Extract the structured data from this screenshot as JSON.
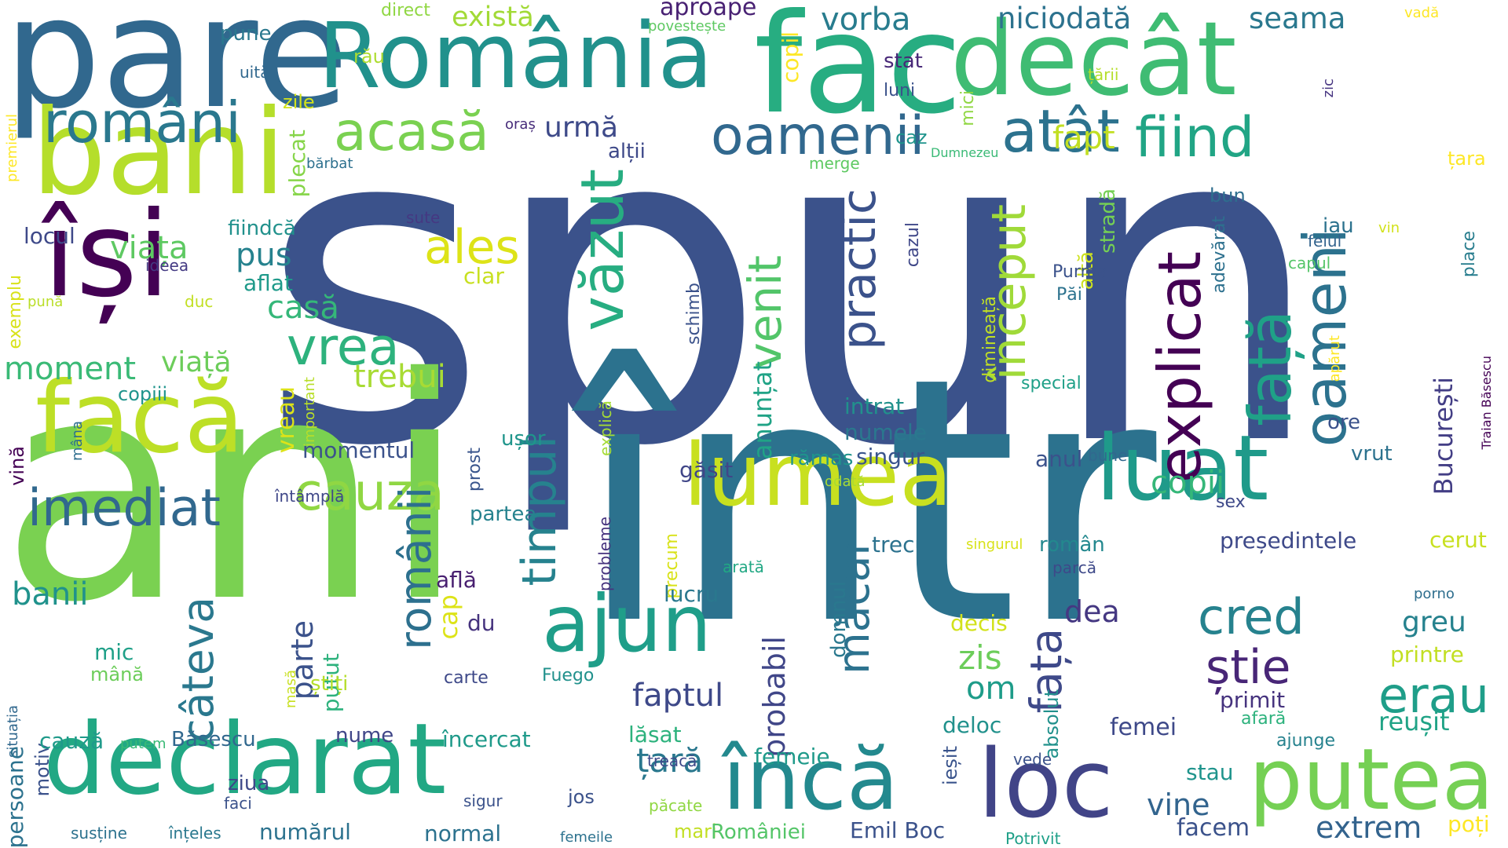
{
  "words": [
    {
      "text": "spun",
      "color": "#3b528b"
    },
    {
      "text": "într",
      "color": "#2c728e"
    },
    {
      "text": "ani",
      "color": "#7ad151"
    },
    {
      "text": "pare",
      "color": "#31688e"
    },
    {
      "text": "România",
      "color": "#21918c"
    },
    {
      "text": "fac",
      "color": "#27ad81"
    },
    {
      "text": "decât",
      "color": "#3fbc73"
    },
    {
      "text": "bani",
      "color": "#b5de2b"
    },
    {
      "text": "își",
      "color": "#440154"
    },
    {
      "text": "facă",
      "color": "#bddf26"
    },
    {
      "text": "declarat",
      "color": "#22a884"
    },
    {
      "text": "lumea",
      "color": "#c8e020"
    },
    {
      "text": "luat",
      "color": "#1f9a8a"
    },
    {
      "text": "loc",
      "color": "#414487"
    },
    {
      "text": "putea",
      "color": "#75d054"
    },
    {
      "text": "încă",
      "color": "#23898e"
    },
    {
      "text": "ajun",
      "color": "#1f9e89"
    },
    {
      "text": "români",
      "color": "#2a788e"
    },
    {
      "text": "acasă",
      "color": "#7ad151"
    },
    {
      "text": "oamenii",
      "color": "#31688e"
    },
    {
      "text": "atât",
      "color": "#2c728e"
    },
    {
      "text": "fiind",
      "color": "#21a585"
    },
    {
      "text": "explicat",
      "color": "#440154"
    },
    {
      "text": "oameni",
      "color": "#2c728e"
    },
    {
      "text": "față",
      "color": "#1fa187"
    },
    {
      "text": "văzut",
      "color": "#27ad81"
    },
    {
      "text": "timpul",
      "color": "#26828e"
    },
    {
      "text": "început",
      "color": "#a0da39"
    },
    {
      "text": "practic",
      "color": "#3b528b"
    },
    {
      "text": "venit",
      "color": "#52c569"
    },
    {
      "text": "vrea",
      "color": "#2db27d"
    },
    {
      "text": "cauza",
      "color": "#90d743"
    },
    {
      "text": "ales",
      "color": "#dde318"
    },
    {
      "text": "imediat",
      "color": "#31688e"
    },
    {
      "text": "câteva",
      "color": "#2a788e"
    },
    {
      "text": "românii",
      "color": "#2d708e"
    },
    {
      "text": "cred",
      "color": "#26828e"
    },
    {
      "text": "știe",
      "color": "#482677"
    },
    {
      "text": "erau",
      "color": "#1f9e89"
    },
    {
      "text": "măcar",
      "color": "#2c728e"
    },
    {
      "text": "fața_2",
      "color": "#3e4989"
    },
    {
      "text": "faptul",
      "color": "#3e4989"
    },
    {
      "text": "probabil",
      "color": "#404688"
    },
    {
      "text": "țară",
      "color": "#2a788e"
    },
    {
      "text": "vine",
      "color": "#32648e"
    },
    {
      "text": "extrem",
      "color": "#33638d"
    },
    {
      "text": "București",
      "color": "#433e85"
    },
    {
      "text": "anunțat",
      "color": "#20a386"
    },
    {
      "text": "copii",
      "color": "#35b779"
    },
    {
      "text": "dea",
      "color": "#453882"
    },
    {
      "text": "zis",
      "color": "#6ccd5a"
    },
    {
      "text": "om",
      "color": "#1e9c89"
    },
    {
      "text": "cap",
      "color": "#dde318"
    },
    {
      "text": "parte",
      "color": "#3b528b"
    },
    {
      "text": "banii",
      "color": "#20928c"
    },
    {
      "text": "moment",
      "color": "#3aba76"
    },
    {
      "text": "viața",
      "color": "#5ec962"
    },
    {
      "text": "viață",
      "color": "#6ccd5a"
    },
    {
      "text": "pus",
      "color": "#26828e"
    },
    {
      "text": "casă",
      "color": "#35b779"
    },
    {
      "text": "trebui",
      "color": "#a8db34"
    },
    {
      "text": "vreau",
      "color": "#dde318"
    },
    {
      "text": "fapt",
      "color": "#c2df23"
    },
    {
      "text": "urmă",
      "color": "#3e4a89"
    },
    {
      "text": "există",
      "color": "#a2da37"
    },
    {
      "text": "vorba",
      "color": "#287c8e"
    },
    {
      "text": "niciodată",
      "color": "#2c728e"
    },
    {
      "text": "seama",
      "color": "#2a788e"
    },
    {
      "text": "aproape",
      "color": "#482173"
    },
    {
      "text": "copil",
      "color": "#fde725"
    },
    {
      "text": "stat",
      "color": "#482878"
    },
    {
      "text": "luni",
      "color": "#3b528b"
    },
    {
      "text": "mici",
      "color": "#90d743"
    },
    {
      "text": "țării",
      "color": "#b5de2b"
    },
    {
      "text": "zic",
      "color": "#463480"
    },
    {
      "text": "vadă",
      "color": "#fde725"
    },
    {
      "text": "direct",
      "color": "#90d743"
    },
    {
      "text": "povestește",
      "color": "#5ec962"
    },
    {
      "text": "pune",
      "color": "#2a788e"
    },
    {
      "text": "uită",
      "color": "#31688e"
    },
    {
      "text": "rău",
      "color": "#addc30"
    },
    {
      "text": "zile",
      "color": "#d2e21b"
    },
    {
      "text": "plecat",
      "color": "#86d549"
    },
    {
      "text": "oraș",
      "color": "#472c7a"
    },
    {
      "text": "bărbat",
      "color": "#2d708e"
    },
    {
      "text": "alții",
      "color": "#3e4989"
    },
    {
      "text": "caz",
      "color": "#1f948c"
    },
    {
      "text": "merge",
      "color": "#5ec962"
    },
    {
      "text": "Dumnezeu",
      "color": "#3aba76"
    },
    {
      "text": "stradă",
      "color": "#75d054"
    },
    {
      "text": "altă",
      "color": "#cde11d"
    },
    {
      "text": "bun",
      "color": "#2e6e8e"
    },
    {
      "text": "adevărat",
      "color": "#2d708e"
    },
    {
      "text": "țara",
      "color": "#fde725"
    },
    {
      "text": "premierul",
      "color": "#fde725"
    },
    {
      "text": "locul",
      "color": "#3e4989"
    },
    {
      "text": "fiindcă",
      "color": "#21918c"
    },
    {
      "text": "sute",
      "color": "#453882"
    },
    {
      "text": "ideea",
      "color": "#443a83"
    },
    {
      "text": "clar",
      "color": "#c8e020"
    },
    {
      "text": "aflat",
      "color": "#1f9a8a"
    },
    {
      "text": "exemplu",
      "color": "#d8e219"
    },
    {
      "text": "pună",
      "color": "#bade28"
    },
    {
      "text": "duc",
      "color": "#c2df23"
    },
    {
      "text": "copiii",
      "color": "#1f948c"
    },
    {
      "text": "momentul",
      "color": "#3b528b"
    },
    {
      "text": "important",
      "color": "#b8de29"
    },
    {
      "text": "mâna",
      "color": "#2e6e8e"
    },
    {
      "text": "vină",
      "color": "#440154"
    },
    {
      "text": "întâmplă",
      "color": "#3f4788"
    },
    {
      "text": "ușor",
      "color": "#1f958b"
    },
    {
      "text": "prost",
      "color": "#39558c"
    },
    {
      "text": "explică",
      "color": "#a5db36"
    },
    {
      "text": "partea",
      "color": "#26828e"
    },
    {
      "text": "probleme",
      "color": "#46337e"
    },
    {
      "text": "cazul",
      "color": "#3f4788"
    },
    {
      "text": "dimineață",
      "color": "#c0df25"
    },
    {
      "text": "Purma",
      "color": "#3b528b"
    },
    {
      "text": "Păi",
      "color": "#2c728e"
    },
    {
      "text": "special",
      "color": "#1fa088"
    },
    {
      "text": "schimb",
      "color": "#3b528b"
    },
    {
      "text": "intrat",
      "color": "#21918c"
    },
    {
      "text": "numele",
      "color": "#2a788e"
    },
    {
      "text": "singur",
      "color": "#3a548c"
    },
    {
      "text": "anul",
      "color": "#3b528b"
    },
    {
      "text": "bune",
      "color": "#31688e"
    },
    {
      "text": "găsit",
      "color": "#404688"
    },
    {
      "text": "rămas",
      "color": "#1f948c"
    },
    {
      "text": "odată",
      "color": "#a8db34"
    },
    {
      "text": "iau",
      "color": "#2c728e"
    },
    {
      "text": "vin",
      "color": "#d2e21b"
    },
    {
      "text": "felul",
      "color": "#33638d"
    },
    {
      "text": "capul",
      "color": "#54c568"
    },
    {
      "text": "place",
      "color": "#287d8e"
    },
    {
      "text": "apărut",
      "color": "#fde725"
    },
    {
      "text": "ore",
      "color": "#3b528b"
    },
    {
      "text": "vrut",
      "color": "#2c728e"
    },
    {
      "text": "Traian Băsescu",
      "color": "#440154"
    },
    {
      "text": "sex",
      "color": "#3e4989"
    },
    {
      "text": "cerut",
      "color": "#c8e020"
    },
    {
      "text": "președintele",
      "color": "#3e4989"
    },
    {
      "text": "trecut",
      "color": "#2c728e"
    },
    {
      "text": "român",
      "color": "#23888e"
    },
    {
      "text": "singurul",
      "color": "#d8e219"
    },
    {
      "text": "arată",
      "color": "#22a884"
    },
    {
      "text": "parcă",
      "color": "#3e4989"
    },
    {
      "text": "precum",
      "color": "#d8e219"
    },
    {
      "text": "domnul",
      "color": "#2a788e"
    },
    {
      "text": "decis",
      "color": "#d2e21b"
    },
    {
      "text": "lucru",
      "color": "#2a788e"
    },
    {
      "text": "absolut",
      "color": "#21918c"
    },
    {
      "text": "greu",
      "color": "#26828e"
    },
    {
      "text": "porno",
      "color": "#2e6e8e"
    },
    {
      "text": "printre",
      "color": "#c2df23"
    },
    {
      "text": "primit",
      "color": "#46337e"
    },
    {
      "text": "afară",
      "color": "#2db27d"
    },
    {
      "text": "reușit",
      "color": "#20a386"
    },
    {
      "text": "ieșit",
      "color": "#3a548c"
    },
    {
      "text": "ajunge",
      "color": "#26828e"
    },
    {
      "text": "deloc",
      "color": "#21918c"
    },
    {
      "text": "vede",
      "color": "#3b528b"
    },
    {
      "text": "femei",
      "color": "#3e4989"
    },
    {
      "text": "stau",
      "color": "#1f948c"
    },
    {
      "text": "facem",
      "color": "#3b528b"
    },
    {
      "text": "poți",
      "color": "#fde725"
    },
    {
      "text": "află",
      "color": "#481f70"
    },
    {
      "text": "du",
      "color": "#46337e"
    },
    {
      "text": "carte",
      "color": "#3e4989"
    },
    {
      "text": "Fuego",
      "color": "#21918c"
    },
    {
      "text": "putut",
      "color": "#2db27d"
    },
    {
      "text": "mic",
      "color": "#1fa088"
    },
    {
      "text": "mână",
      "color": "#6ccd5a"
    },
    {
      "text": "masă",
      "color": "#c8e020"
    },
    {
      "text": "situația",
      "color": "#31688e"
    },
    {
      "text": "persoane",
      "color": "#2c728e"
    },
    {
      "text": "motiv",
      "color": "#3b528b"
    },
    {
      "text": "cauză",
      "color": "#1f9a8a"
    },
    {
      "text": "putem",
      "color": "#3aba76"
    },
    {
      "text": "Băsescu",
      "color": "#31688e"
    },
    {
      "text": "nume",
      "color": "#404688"
    },
    {
      "text": "știți",
      "color": "#b5de2b"
    },
    {
      "text": "încercat",
      "color": "#1f9a8a"
    },
    {
      "text": "ziua",
      "color": "#3e4989"
    },
    {
      "text": "faci",
      "color": "#3b528b"
    },
    {
      "text": "jos",
      "color": "#3b528b"
    },
    {
      "text": "sigur",
      "color": "#3b528b"
    },
    {
      "text": "susține",
      "color": "#2c728e"
    },
    {
      "text": "înțeles",
      "color": "#2a788e"
    },
    {
      "text": "numărul",
      "color": "#2c728e"
    },
    {
      "text": "normal",
      "color": "#2c728e"
    },
    {
      "text": "femeile",
      "color": "#2c728e"
    },
    {
      "text": "mari",
      "color": "#c2df23"
    },
    {
      "text": "României",
      "color": "#54c568"
    },
    {
      "text": "Emil Boc",
      "color": "#3b528b"
    },
    {
      "text": "Potrivit",
      "color": "#1fa088"
    },
    {
      "text": "lăsat",
      "color": "#2db27d"
    },
    {
      "text": "treacă",
      "color": "#3e4989"
    },
    {
      "text": "păcate",
      "color": "#90d743"
    },
    {
      "text": "femeie",
      "color": "#1f9a8a"
    }
  ]
}
